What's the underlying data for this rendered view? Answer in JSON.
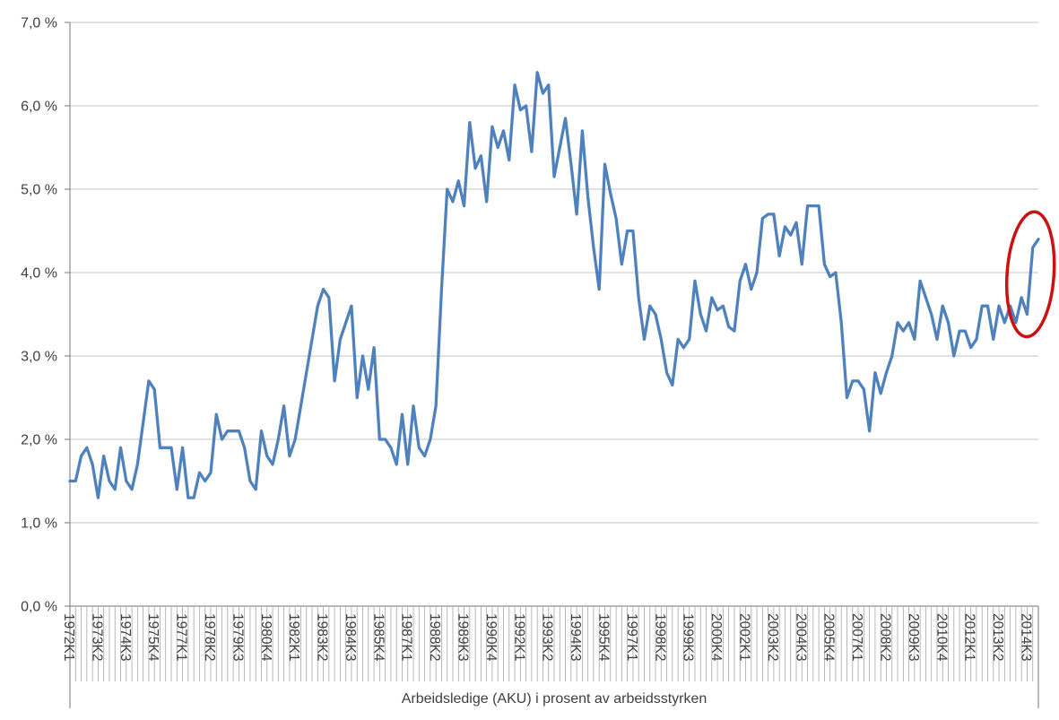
{
  "chart_data": {
    "type": "line",
    "title": "",
    "xlabel": "Arbeidsledige (AKU) i prosent av arbeidsstyrken",
    "ylabel": "",
    "ylim": [
      0,
      7
    ],
    "grid": "horizontal",
    "legend": "none",
    "x_start": "1972K1",
    "x_end": "2015K1",
    "x_tick_interval_quarters": 5,
    "x_tick_labels": [
      "1972K1",
      "1973K2",
      "1974K3",
      "1975K4",
      "1977K1",
      "1978K2",
      "1979K3",
      "1980K4",
      "1982K1",
      "1983K2",
      "1984K3",
      "1985K4",
      "1987K1",
      "1988K2",
      "1989K3",
      "1990K4",
      "1992K1",
      "1993K2",
      "1994K3",
      "1995K4",
      "1997K1",
      "1998K2",
      "1999K3",
      "2000K4",
      "2002K1",
      "2003K2",
      "2004K3",
      "2005K4",
      "2007K1",
      "2008K2",
      "2009K3",
      "2010K4",
      "2012K1",
      "2013K2",
      "2014K3"
    ],
    "y_tick_labels": [
      "0,0 %",
      "1,0 %",
      "2,0 %",
      "3,0 %",
      "4,0 %",
      "5,0 %",
      "6,0 %",
      "7,0 %"
    ],
    "series": [
      {
        "name": "Arbeidsledige (AKU) i prosent av arbeidsstyrken",
        "unit": "percent",
        "values": [
          1.5,
          1.5,
          1.8,
          1.9,
          1.7,
          1.3,
          1.8,
          1.5,
          1.4,
          1.9,
          1.5,
          1.4,
          1.7,
          2.2,
          2.7,
          2.6,
          1.9,
          1.9,
          1.9,
          1.4,
          1.9,
          1.3,
          1.3,
          1.6,
          1.5,
          1.6,
          2.3,
          2.0,
          2.1,
          2.1,
          2.1,
          1.9,
          1.5,
          1.4,
          2.1,
          1.8,
          1.7,
          2.0,
          2.4,
          1.8,
          2.0,
          2.4,
          2.8,
          3.2,
          3.6,
          3.8,
          3.7,
          2.7,
          3.2,
          3.4,
          3.6,
          2.5,
          3.0,
          2.6,
          3.1,
          2.0,
          2.0,
          1.9,
          1.7,
          2.3,
          1.7,
          2.4,
          1.9,
          1.8,
          2.0,
          2.4,
          3.8,
          5.0,
          4.85,
          5.1,
          4.8,
          5.8,
          5.25,
          5.4,
          4.85,
          5.75,
          5.5,
          5.7,
          5.35,
          6.25,
          5.95,
          6.0,
          5.45,
          6.4,
          6.15,
          6.25,
          5.15,
          5.5,
          5.85,
          5.3,
          4.7,
          5.7,
          4.9,
          4.3,
          3.8,
          5.3,
          4.95,
          4.65,
          4.1,
          4.5,
          4.5,
          3.7,
          3.2,
          3.6,
          3.5,
          3.2,
          2.8,
          2.65,
          3.2,
          3.1,
          3.2,
          3.9,
          3.5,
          3.3,
          3.7,
          3.55,
          3.6,
          3.35,
          3.3,
          3.9,
          4.1,
          3.8,
          4.0,
          4.65,
          4.7,
          4.7,
          4.2,
          4.55,
          4.45,
          4.6,
          4.1,
          4.8,
          4.8,
          4.8,
          4.1,
          3.95,
          4.0,
          3.4,
          2.5,
          2.7,
          2.7,
          2.6,
          2.1,
          2.8,
          2.55,
          2.8,
          3.0,
          3.4,
          3.3,
          3.4,
          3.2,
          3.9,
          3.7,
          3.5,
          3.2,
          3.6,
          3.4,
          3.0,
          3.3,
          3.3,
          3.1,
          3.2,
          3.6,
          3.6,
          3.2,
          3.6,
          3.4,
          3.6,
          3.4,
          3.7,
          3.5,
          4.3,
          4.4
        ]
      }
    ],
    "annotation": {
      "shape": "ellipse",
      "color": "#CC1111",
      "center_quarter_index": 170.6,
      "center_value": 3.98,
      "rx_quarters": 4.15,
      "ry_percent": 0.75,
      "tilt_deg": 4,
      "stroke_width": 3.5
    },
    "colors": {
      "line": "#4F81BD",
      "gridline": "#C6C6C6",
      "axis": "#8C8C8C",
      "tick_comb": "#A6A6A6",
      "text": "#3F3F3F",
      "background": "#FFFFFF"
    }
  }
}
